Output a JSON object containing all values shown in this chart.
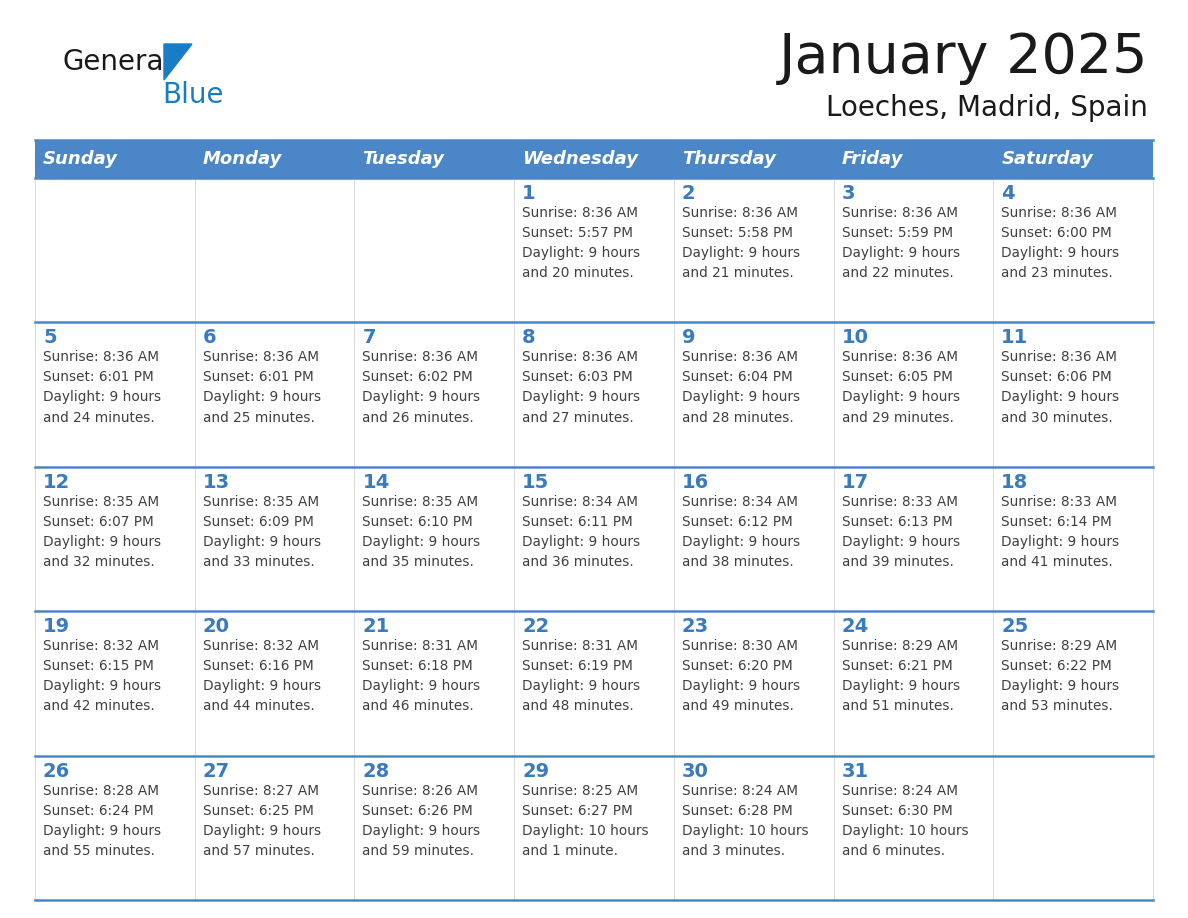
{
  "title": "January 2025",
  "subtitle": "Loeches, Madrid, Spain",
  "header_color": "#4a86c8",
  "header_text_color": "#ffffff",
  "cell_bg_color": "#ffffff",
  "day_text_color": "#3a7bbf",
  "info_text_color": "#404040",
  "border_color": "#4a86c8",
  "days_of_week": [
    "Sunday",
    "Monday",
    "Tuesday",
    "Wednesday",
    "Thursday",
    "Friday",
    "Saturday"
  ],
  "calendar_data": [
    [
      {
        "day": null,
        "info": null
      },
      {
        "day": null,
        "info": null
      },
      {
        "day": null,
        "info": null
      },
      {
        "day": "1",
        "info": "Sunrise: 8:36 AM\nSunset: 5:57 PM\nDaylight: 9 hours\nand 20 minutes."
      },
      {
        "day": "2",
        "info": "Sunrise: 8:36 AM\nSunset: 5:58 PM\nDaylight: 9 hours\nand 21 minutes."
      },
      {
        "day": "3",
        "info": "Sunrise: 8:36 AM\nSunset: 5:59 PM\nDaylight: 9 hours\nand 22 minutes."
      },
      {
        "day": "4",
        "info": "Sunrise: 8:36 AM\nSunset: 6:00 PM\nDaylight: 9 hours\nand 23 minutes."
      }
    ],
    [
      {
        "day": "5",
        "info": "Sunrise: 8:36 AM\nSunset: 6:01 PM\nDaylight: 9 hours\nand 24 minutes."
      },
      {
        "day": "6",
        "info": "Sunrise: 8:36 AM\nSunset: 6:01 PM\nDaylight: 9 hours\nand 25 minutes."
      },
      {
        "day": "7",
        "info": "Sunrise: 8:36 AM\nSunset: 6:02 PM\nDaylight: 9 hours\nand 26 minutes."
      },
      {
        "day": "8",
        "info": "Sunrise: 8:36 AM\nSunset: 6:03 PM\nDaylight: 9 hours\nand 27 minutes."
      },
      {
        "day": "9",
        "info": "Sunrise: 8:36 AM\nSunset: 6:04 PM\nDaylight: 9 hours\nand 28 minutes."
      },
      {
        "day": "10",
        "info": "Sunrise: 8:36 AM\nSunset: 6:05 PM\nDaylight: 9 hours\nand 29 minutes."
      },
      {
        "day": "11",
        "info": "Sunrise: 8:36 AM\nSunset: 6:06 PM\nDaylight: 9 hours\nand 30 minutes."
      }
    ],
    [
      {
        "day": "12",
        "info": "Sunrise: 8:35 AM\nSunset: 6:07 PM\nDaylight: 9 hours\nand 32 minutes."
      },
      {
        "day": "13",
        "info": "Sunrise: 8:35 AM\nSunset: 6:09 PM\nDaylight: 9 hours\nand 33 minutes."
      },
      {
        "day": "14",
        "info": "Sunrise: 8:35 AM\nSunset: 6:10 PM\nDaylight: 9 hours\nand 35 minutes."
      },
      {
        "day": "15",
        "info": "Sunrise: 8:34 AM\nSunset: 6:11 PM\nDaylight: 9 hours\nand 36 minutes."
      },
      {
        "day": "16",
        "info": "Sunrise: 8:34 AM\nSunset: 6:12 PM\nDaylight: 9 hours\nand 38 minutes."
      },
      {
        "day": "17",
        "info": "Sunrise: 8:33 AM\nSunset: 6:13 PM\nDaylight: 9 hours\nand 39 minutes."
      },
      {
        "day": "18",
        "info": "Sunrise: 8:33 AM\nSunset: 6:14 PM\nDaylight: 9 hours\nand 41 minutes."
      }
    ],
    [
      {
        "day": "19",
        "info": "Sunrise: 8:32 AM\nSunset: 6:15 PM\nDaylight: 9 hours\nand 42 minutes."
      },
      {
        "day": "20",
        "info": "Sunrise: 8:32 AM\nSunset: 6:16 PM\nDaylight: 9 hours\nand 44 minutes."
      },
      {
        "day": "21",
        "info": "Sunrise: 8:31 AM\nSunset: 6:18 PM\nDaylight: 9 hours\nand 46 minutes."
      },
      {
        "day": "22",
        "info": "Sunrise: 8:31 AM\nSunset: 6:19 PM\nDaylight: 9 hours\nand 48 minutes."
      },
      {
        "day": "23",
        "info": "Sunrise: 8:30 AM\nSunset: 6:20 PM\nDaylight: 9 hours\nand 49 minutes."
      },
      {
        "day": "24",
        "info": "Sunrise: 8:29 AM\nSunset: 6:21 PM\nDaylight: 9 hours\nand 51 minutes."
      },
      {
        "day": "25",
        "info": "Sunrise: 8:29 AM\nSunset: 6:22 PM\nDaylight: 9 hours\nand 53 minutes."
      }
    ],
    [
      {
        "day": "26",
        "info": "Sunrise: 8:28 AM\nSunset: 6:24 PM\nDaylight: 9 hours\nand 55 minutes."
      },
      {
        "day": "27",
        "info": "Sunrise: 8:27 AM\nSunset: 6:25 PM\nDaylight: 9 hours\nand 57 minutes."
      },
      {
        "day": "28",
        "info": "Sunrise: 8:26 AM\nSunset: 6:26 PM\nDaylight: 9 hours\nand 59 minutes."
      },
      {
        "day": "29",
        "info": "Sunrise: 8:25 AM\nSunset: 6:27 PM\nDaylight: 10 hours\nand 1 minute."
      },
      {
        "day": "30",
        "info": "Sunrise: 8:24 AM\nSunset: 6:28 PM\nDaylight: 10 hours\nand 3 minutes."
      },
      {
        "day": "31",
        "info": "Sunrise: 8:24 AM\nSunset: 6:30 PM\nDaylight: 10 hours\nand 6 minutes."
      },
      {
        "day": null,
        "info": null
      }
    ]
  ],
  "logo_general_color": "#1a1a1a",
  "logo_blue_color": "#1a7cc4",
  "title_fontsize": 40,
  "subtitle_fontsize": 20,
  "header_fontsize": 13,
  "day_num_fontsize": 14,
  "info_fontsize": 9.8
}
